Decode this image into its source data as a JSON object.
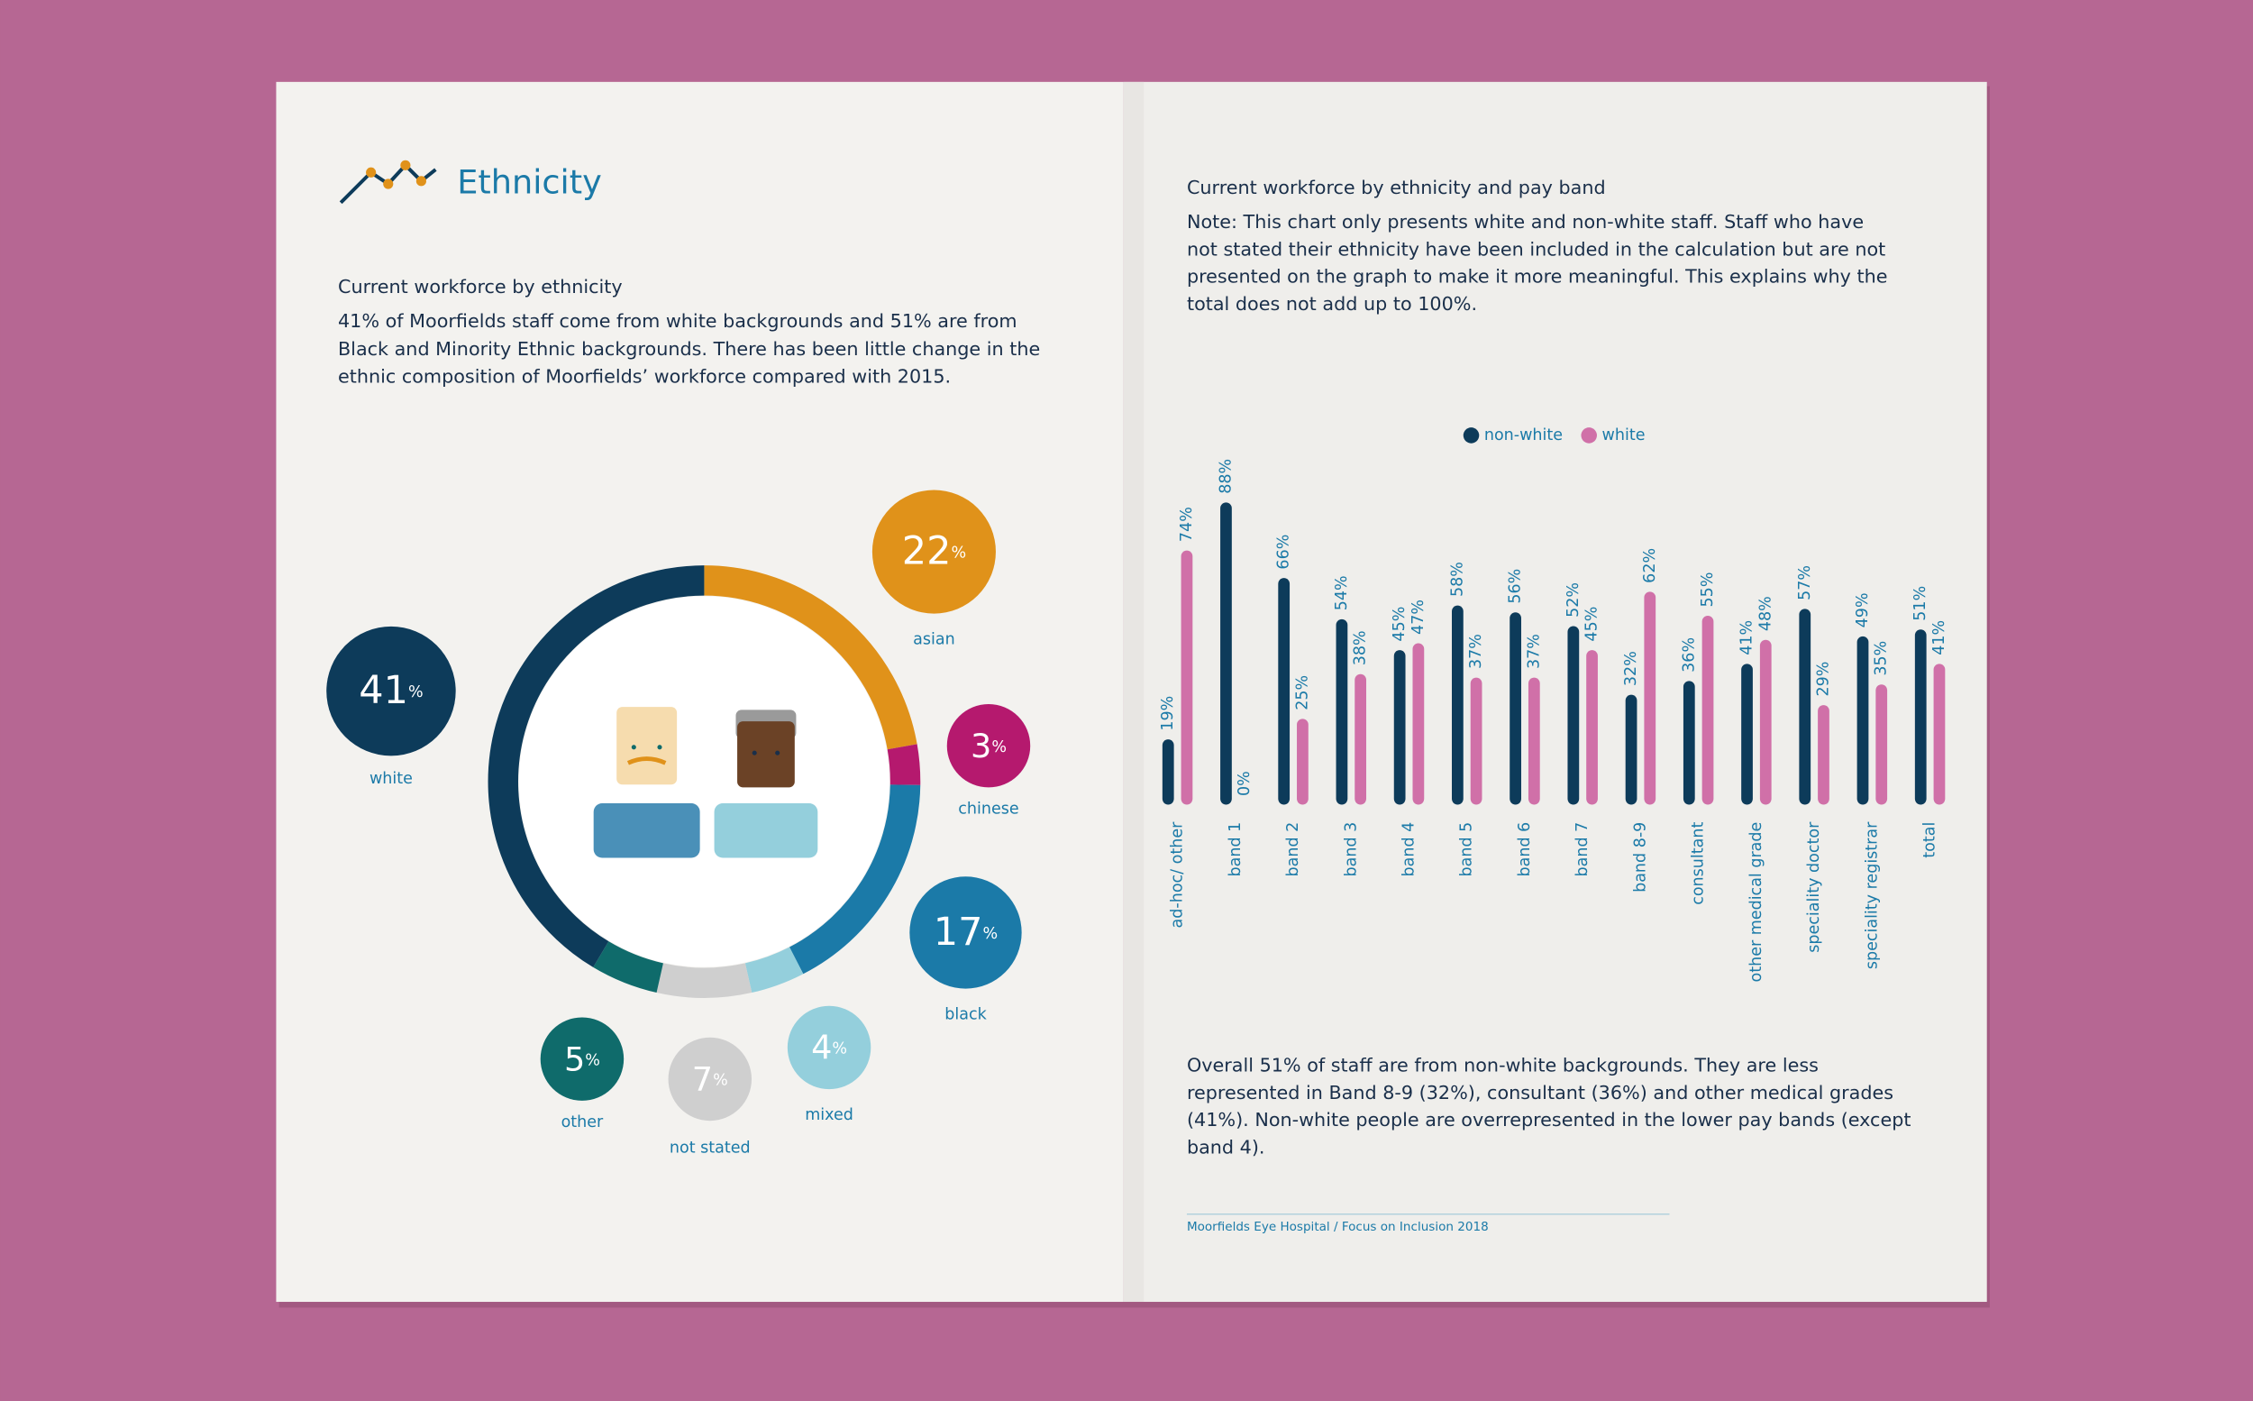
{
  "page": {
    "section_title": "Ethnicity",
    "left_heading": "Current workforce by ethnicity",
    "left_paragraph": [
      "41% of Moorfields staff come from white backgrounds and 51% are from",
      "Black and Minority Ethnic backgrounds. There has been little change in the",
      "ethnic composition of Moorfields’ workforce compared with 2015."
    ],
    "right_heading": "Current workforce by ethnicity and pay band",
    "right_note": [
      "Note: This chart only presents white and non-white staff. Staff who have",
      "not stated their ethnicity have been included in the calculation but are not",
      "presented on the graph to make it more meaningful. This explains why the",
      "total does not add up to 100%."
    ],
    "right_summary": [
      "Overall 51% of staff are from non-white backgrounds. They are less",
      "represented in Band 8-9 (32%), consultant (36%) and other medical grades",
      "(41%). Non-white people are overrepresented in the lower pay bands (except",
      "band 4)."
    ],
    "footer": "Moorfields Eye Hospital / Focus on Inclusion 2018"
  },
  "chart_data": [
    {
      "type": "donut",
      "categories": [
        "asian",
        "chinese",
        "black",
        "mixed",
        "not stated",
        "other",
        "white"
      ],
      "values": [
        22,
        3,
        17,
        4,
        7,
        5,
        41
      ],
      "unit": "%",
      "colors": [
        "#e0921a",
        "#b5196e",
        "#1b7aa8",
        "#94cfdc",
        "#cfcfcf",
        "#0f6b6b",
        "#0d3b5a"
      ]
    },
    {
      "type": "grouped-bar",
      "categories": [
        "ad-hoc/ other",
        "band 1",
        "band 2",
        "band 3",
        "band 4",
        "band 5",
        "band 6",
        "band 7",
        "band 8-9",
        "consultant",
        "other medical grade",
        "speciality doctor",
        "speciality registrar",
        "total"
      ],
      "unit": "%",
      "series": [
        {
          "name": "non-white",
          "color": "#0d3b5a",
          "values": [
            19,
            88,
            66,
            54,
            45,
            58,
            56,
            52,
            32,
            36,
            41,
            57,
            49,
            51
          ]
        },
        {
          "name": "white",
          "color": "#d070a8",
          "values": [
            74,
            0,
            25,
            38,
            47,
            37,
            37,
            45,
            62,
            55,
            48,
            29,
            35,
            41
          ]
        }
      ]
    }
  ]
}
